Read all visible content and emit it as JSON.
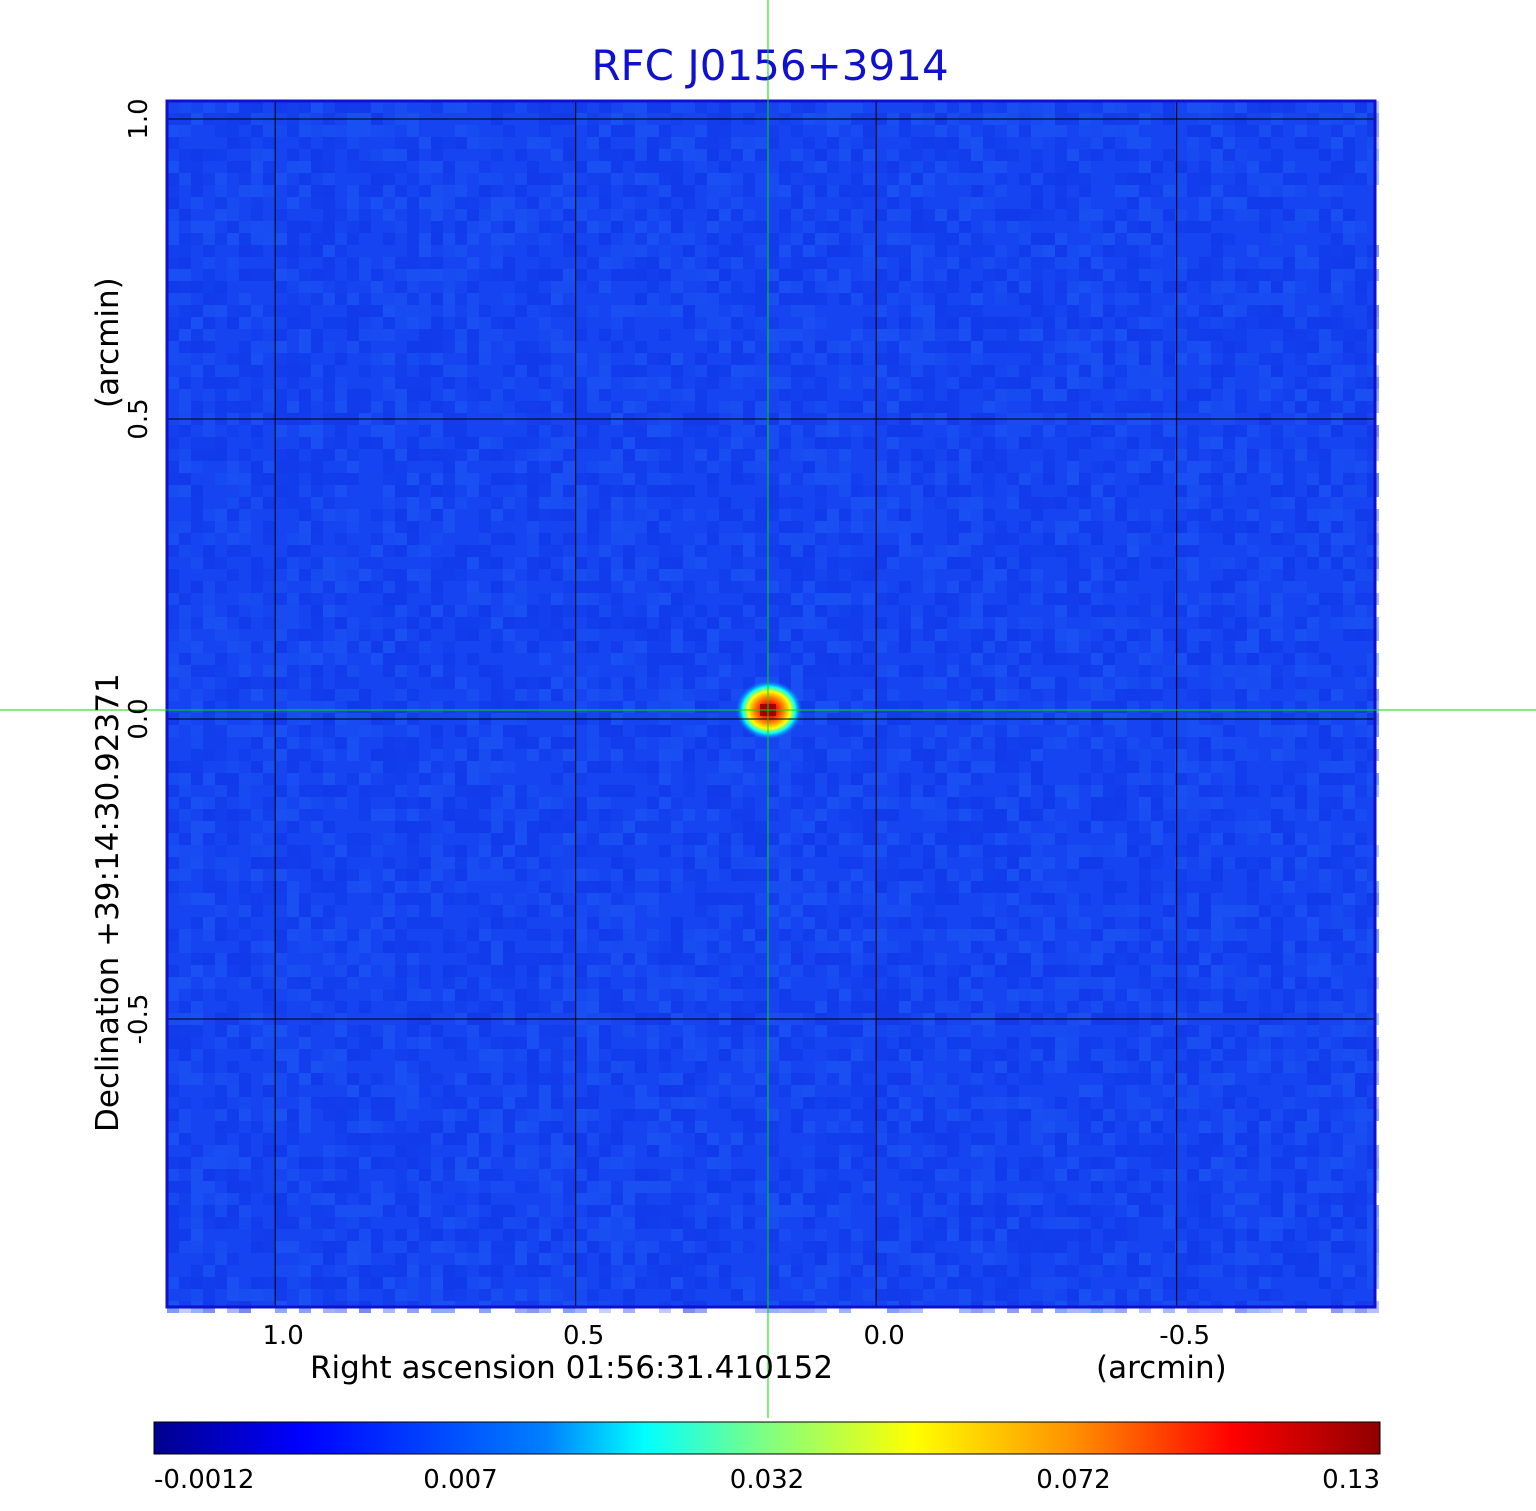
{
  "chart_data": {
    "type": "heatmap",
    "title": "RFC J0156+3914",
    "xlabel": "Right ascension  01:56:31.410152",
    "xunit": "(arcmin)",
    "ylabel": "Declination  +39:14:30.92371",
    "yunit": "(arcmin)",
    "xlim": [
      1.18,
      -0.83
    ],
    "ylim": [
      -0.98,
      1.03
    ],
    "x_ticks": [
      {
        "value": 1.0,
        "label": "1.0"
      },
      {
        "value": 0.5,
        "label": "0.5"
      },
      {
        "value": 0.0,
        "label": "0.0"
      },
      {
        "value": -0.5,
        "label": "-0.5"
      }
    ],
    "y_ticks": [
      {
        "value": 1.0,
        "label": "1.0"
      },
      {
        "value": 0.5,
        "label": "0.5"
      },
      {
        "value": 0.0,
        "label": "0.0"
      },
      {
        "value": -0.5,
        "label": "-0.5"
      }
    ],
    "grid": true,
    "crosshair": {
      "x": 0.18,
      "y": 0.015,
      "color": "#00dd00"
    },
    "background_level": 0.0,
    "source": {
      "x": 0.18,
      "y": 0.015,
      "peak": 0.13
    },
    "colormap": "jet",
    "colorbar": {
      "ticks": [
        "-0.0012",
        "0.007",
        "0.032",
        "0.072",
        "0.13"
      ],
      "placement": "bottom"
    }
  },
  "colors": {
    "title": "#1010d0",
    "frame": "#1010d0",
    "grid": "#000000",
    "crosshair": "#00dd00",
    "background": "#1544f0"
  }
}
